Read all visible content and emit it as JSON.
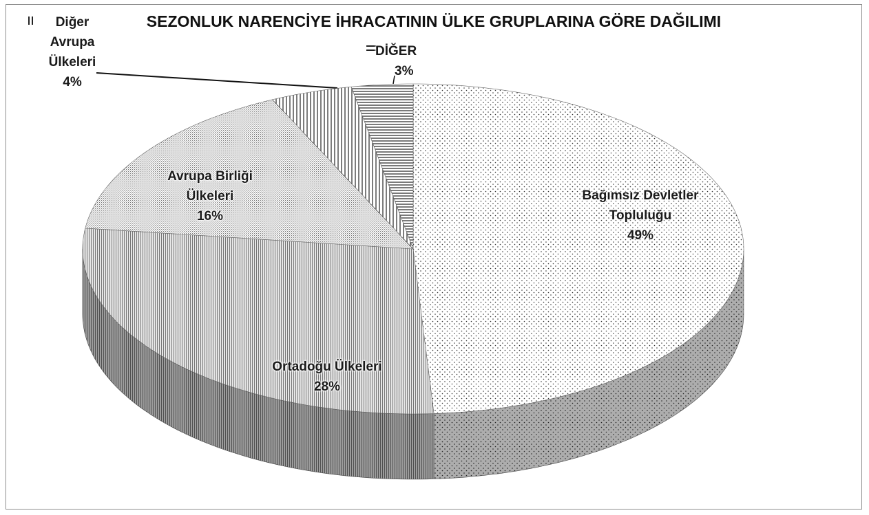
{
  "chart_data": {
    "type": "pie",
    "title": "SEZONLUK NARENCİYE İHRACATININ ÜLKE GRUPLARINA GÖRE DAĞILIMI",
    "categories": [
      "Bağımsız Devletler Topluluğu",
      "Ortadoğu Ülkeleri",
      "Avrupa Birliği Ülkeleri",
      "Diğer Avrupa Ülkeleri",
      "DİĞER"
    ],
    "values": [
      49,
      28,
      16,
      4,
      3
    ],
    "value_labels": [
      "49%",
      "28%",
      "16%",
      "4%",
      "3%"
    ],
    "three_d": true
  }
}
